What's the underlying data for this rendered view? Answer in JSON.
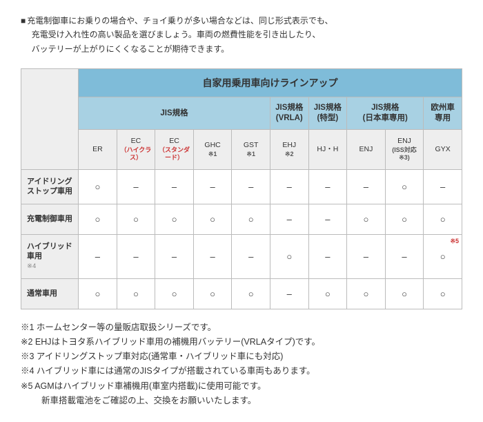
{
  "intro": {
    "line1": "充電制御車にお乗りの場合や、チョイ乗りが多い場合などは、同じ形式表示でも、",
    "line2": "充電受け入れ性の高い製品を選びましょう。車両の燃費性能を引き出したり、",
    "line3": "バッテリーが上がりにくくなることが期待できます。"
  },
  "table": {
    "main_header": "自家用乗用車向けラインアップ",
    "cat_headers": [
      "JIS規格",
      "JIS規格\n(VRLA)",
      "JIS規格\n(特型)",
      "JIS規格\n(日本車専用)",
      "欧州車\n専用"
    ],
    "cols": [
      {
        "main": "ER",
        "sub": ""
      },
      {
        "main": "EC",
        "sub": "（ハイクラス）",
        "cls": "col-sub"
      },
      {
        "main": "EC",
        "sub": "（スタンダード）",
        "cls": "col-sub"
      },
      {
        "main": "GHC",
        "sub": "※1",
        "cls": "col-sub gray"
      },
      {
        "main": "GST",
        "sub": "※1",
        "cls": "col-sub gray"
      },
      {
        "main": "EHJ",
        "sub": "※2",
        "cls": "col-sub gray"
      },
      {
        "main": "HJ・H",
        "sub": ""
      },
      {
        "main": "ENJ",
        "sub": ""
      },
      {
        "main": "ENJ",
        "sub": "(ISS対応\n※3)",
        "cls": "col-sub gray"
      },
      {
        "main": "GYX",
        "sub": ""
      }
    ],
    "rows": [
      {
        "label": "アイドリング\nストップ車用",
        "note": "",
        "cells": [
          "○",
          "–",
          "–",
          "–",
          "–",
          "–",
          "–",
          "–",
          "○",
          "–"
        ]
      },
      {
        "label": "充電制御車用",
        "note": "",
        "cells": [
          "○",
          "○",
          "○",
          "○",
          "○",
          "–",
          "–",
          "○",
          "○",
          "○"
        ]
      },
      {
        "label": "ハイブリッド車用",
        "note": "※4",
        "cells": [
          "–",
          "–",
          "–",
          "–",
          "–",
          "○",
          "–",
          "–",
          "–",
          "○"
        ],
        "note5_col": 9
      },
      {
        "label": "通常車用",
        "note": "",
        "cells": [
          "○",
          "○",
          "○",
          "○",
          "○",
          "–",
          "○",
          "○",
          "○",
          "○"
        ]
      }
    ]
  },
  "footnotes": [
    "※1 ホームセンター等の量販店取扱シリーズです。",
    "※2 EHJはトヨタ系ハイブリッド車用の補機用バッテリー(VRLAタイプ)です。",
    "※3 アイドリングストップ車対応(通常車・ハイブリッド車にも対応)",
    "※4 ハイブリッド車には通常のJISタイプが搭載されている車両もあります。",
    "※5 AGMはハイブリッド車補機用(車室内搭載)に使用可能です。"
  ],
  "footnote_cont": "新車搭載電池をご確認の上、交換をお願いいたします。",
  "note5_label": "※5"
}
